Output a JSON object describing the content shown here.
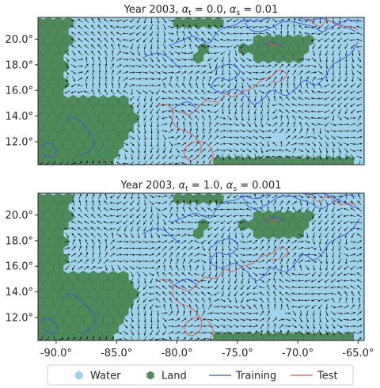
{
  "chart_data": [
    {
      "type": "map",
      "title_main": "Year 2003, ",
      "title_math": "αt = 0.0, αs = 0.01",
      "alpha_t": "0.0",
      "alpha_s": "0.01",
      "xlim": [
        -91.5,
        -64.5
      ],
      "ylim": [
        10.2,
        21.7
      ],
      "yticks": [
        "12.0°",
        "14.0°",
        "16.0°",
        "18.0°",
        "20.0°"
      ],
      "ytick_values": [
        12,
        14,
        16,
        18,
        20
      ]
    },
    {
      "type": "map",
      "title_main": "Year 2003, ",
      "title_math": "αt = 1.0, αs = 0.001",
      "alpha_t": "1.0",
      "alpha_s": "0.001",
      "xlim": [
        -91.5,
        -64.5
      ],
      "ylim": [
        10.2,
        21.7
      ],
      "yticks": [
        "12.0°",
        "14.0°",
        "16.0°",
        "18.0°",
        "20.0°"
      ],
      "ytick_values": [
        12,
        14,
        16,
        18,
        20
      ],
      "xticks": [
        "-90.0°",
        "-85.0°",
        "-80.0°",
        "-75.0°",
        "-70.0°",
        "-65.0°"
      ],
      "xtick_values": [
        -90,
        -85,
        -80,
        -75,
        -70,
        -65
      ]
    }
  ],
  "legend": {
    "placement": "bottom-center",
    "items": [
      {
        "label": "Water",
        "marker": "hexagon",
        "color": "#9fd3ea"
      },
      {
        "label": "Land",
        "marker": "hexagon",
        "color": "#4e8a5a"
      },
      {
        "label": "Training",
        "marker": "line",
        "color": "#3d4fd1"
      },
      {
        "label": "Test",
        "marker": "line",
        "color": "#d9534f"
      }
    ]
  },
  "colors": {
    "water": "#9fd3ea",
    "land": "#4e8a5a",
    "land_edge": "#3b6f47",
    "arrow": "#1a1a1a",
    "training": "#3d4fd1",
    "test": "#d9534f"
  }
}
